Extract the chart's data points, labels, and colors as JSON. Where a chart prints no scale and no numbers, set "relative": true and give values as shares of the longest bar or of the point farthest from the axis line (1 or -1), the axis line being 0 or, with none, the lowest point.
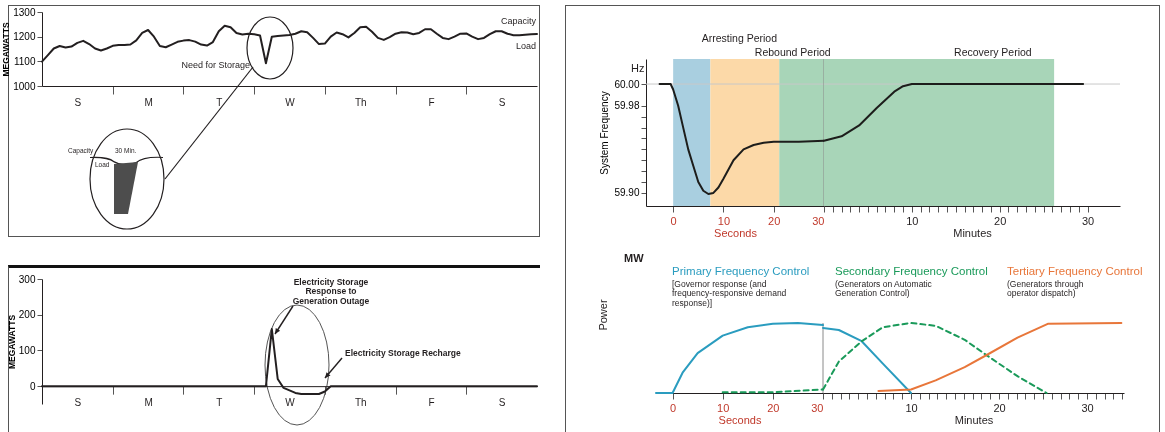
{
  "chart_data": [
    {
      "type": "line",
      "ylabel": "MEGAWATTS",
      "categories": [
        null,
        null,
        null,
        null,
        null,
        null,
        "S",
        null,
        null,
        null,
        null,
        null,
        null,
        null,
        null,
        null,
        null,
        null,
        "M",
        null,
        null,
        null,
        null,
        null,
        null,
        null,
        null,
        null,
        null,
        null,
        "T",
        null,
        null,
        null,
        null,
        null,
        null,
        null,
        null,
        null,
        null,
        null,
        "W",
        null,
        null,
        null,
        null,
        null,
        null,
        null,
        null,
        null,
        null,
        null,
        "Th",
        null,
        null,
        null,
        null,
        null,
        null,
        null,
        null,
        null,
        null,
        null,
        "F",
        null,
        null,
        null,
        null,
        null,
        null,
        null,
        null,
        null,
        null,
        null,
        "S",
        null,
        null,
        null,
        null,
        null,
        null
      ],
      "series": [
        {
          "color": "#231f20",
          "values": [
            1099,
            1125,
            1152,
            1162,
            1156,
            1160,
            1175,
            1183,
            1170,
            1152,
            1144,
            1152,
            1163,
            1166,
            1166,
            1168,
            1185,
            1215,
            1227,
            1200,
            1162,
            1157,
            1168,
            1179,
            1184,
            1186,
            1180,
            1168,
            1164,
            1178,
            1222,
            1244,
            1238,
            1215,
            1209,
            1212,
            1210,
            1205,
            1092,
            1200,
            1203,
            1205,
            1207,
            1212,
            1222,
            1218,
            1195,
            1170,
            1172,
            1200,
            1217,
            1210,
            1197,
            1215,
            1238,
            1240,
            1220,
            1195,
            1187,
            1198,
            1212,
            1218,
            1217,
            1210,
            1215,
            1230,
            1230,
            1212,
            1195,
            1190,
            1200,
            1212,
            1213,
            1200,
            1190,
            1195,
            1210,
            1222,
            1222,
            1212,
            1206,
            1206,
            1208,
            1210,
            1211
          ]
        }
      ],
      "ylim": [
        1000,
        1300
      ],
      "yticks": [
        1000,
        1100,
        1200,
        1300
      ],
      "annotations": [
        "Need for Storage",
        "Capacity",
        "Load",
        "Capacity",
        "30 Min.",
        "Load"
      ]
    },
    {
      "type": "line",
      "ylabel": "MEGAWATTS",
      "categories": [
        null,
        null,
        null,
        null,
        null,
        null,
        "S",
        null,
        null,
        null,
        null,
        null,
        null,
        null,
        null,
        null,
        null,
        null,
        "M",
        null,
        null,
        null,
        null,
        null,
        null,
        null,
        null,
        null,
        null,
        null,
        "T",
        null,
        null,
        null,
        null,
        null,
        null,
        null,
        null,
        null,
        null,
        null,
        "W",
        null,
        null,
        null,
        null,
        null,
        null,
        null,
        null,
        null,
        null,
        null,
        "Th",
        null,
        null,
        null,
        null,
        null,
        null,
        null,
        null,
        null,
        null,
        null,
        "F",
        null,
        null,
        null,
        null,
        null,
        null,
        null,
        null,
        null,
        null,
        null,
        "S",
        null,
        null,
        null,
        null,
        null,
        null
      ],
      "series": [
        {
          "color": "#231f20",
          "values": [
            0,
            0,
            0,
            0,
            0,
            0,
            0,
            0,
            0,
            0,
            0,
            0,
            0,
            0,
            0,
            0,
            0,
            0,
            0,
            0,
            0,
            0,
            0,
            0,
            0,
            0,
            0,
            0,
            0,
            0,
            0,
            0,
            0,
            0,
            0,
            0,
            0,
            0,
            0,
            160,
            20,
            -5,
            -12,
            -19,
            -22,
            -22,
            -22,
            -22,
            -15,
            0,
            0,
            0,
            0,
            0,
            0,
            0,
            0,
            0,
            0,
            0,
            0,
            0,
            0,
            0,
            0,
            0,
            0,
            0,
            0,
            0,
            0,
            0,
            0,
            0,
            0,
            0,
            0,
            0,
            0,
            0,
            0,
            0,
            0,
            0,
            0
          ]
        }
      ],
      "ylim": [
        -50,
        300
      ],
      "yticks": [
        0,
        100,
        200,
        300
      ],
      "annotations": [
        "Electricity Storage Response to Generation Outage",
        "Electricity Storage Recharge"
      ]
    },
    {
      "type": "line",
      "xlabel": "Seconds",
      "ylabel": "System Frequency",
      "x": [
        -2.7,
        -0.5,
        0,
        1,
        2,
        3,
        4,
        5,
        6,
        7,
        8,
        9,
        10,
        12,
        14,
        16,
        18,
        20,
        25,
        30
      ],
      "series": [
        {
          "color": "#1d1d1b",
          "values": [
            60.0,
            60.0,
            59.995,
            59.98,
            59.96,
            59.94,
            59.925,
            59.91,
            59.902,
            59.899,
            59.9,
            59.905,
            59.913,
            59.93,
            59.94,
            59.944,
            59.946,
            59.947,
            59.947,
            59.948
          ]
        }
      ],
      "xlim": [
        -5.4,
        30
      ],
      "xticks": [
        0,
        10,
        20,
        30
      ],
      "ylim": [
        59.888,
        60.023
      ],
      "yticks": [
        {
          "value": 59.9,
          "label": "59.90"
        },
        {
          "value": 59.91,
          "label": null
        },
        {
          "value": 59.92,
          "label": null
        },
        {
          "value": 59.93,
          "label": null
        },
        {
          "value": 59.94,
          "label": null
        },
        {
          "value": 59.95,
          "label": null
        },
        {
          "value": 59.96,
          "label": null
        },
        {
          "value": 59.97,
          "label": null
        },
        {
          "value": 59.98,
          "label": "59.98"
        },
        {
          "value": 60.0,
          "label": "60.00"
        }
      ],
      "bands": [
        {
          "axis": "x",
          "from": 0,
          "to": 7.4,
          "label": "Arresting Period",
          "color": "#a9cfe0"
        },
        {
          "axis": "x",
          "from": 7.4,
          "to": 21.1,
          "label": "Rebound Period",
          "color": "#fcd9a8"
        },
        {
          "axis": "x",
          "from": 21.1,
          "to": 30,
          "color": "#a8d5b8"
        }
      ],
      "ref_lines": [
        {
          "axis": "y",
          "value": 60.0,
          "color": "#c8c8c8"
        },
        {
          "axis": "x",
          "value": 30,
          "color": "#8a8a8a"
        }
      ],
      "annotations": [
        "Hz"
      ]
    },
    {
      "type": "line",
      "xlabel": "Minutes",
      "tick_labels": "x",
      "x": [
        0,
        2,
        4,
        6,
        8,
        9,
        10,
        29.5
      ],
      "series": [
        {
          "color": "#1d1d1b",
          "values": [
            59.948,
            59.952,
            59.962,
            59.978,
            59.993,
            59.998,
            60.0,
            60.0
          ]
        }
      ],
      "xlim": [
        0,
        33.7
      ],
      "xticks": [
        {
          "value": 1,
          "label": null
        },
        {
          "value": 2,
          "label": null
        },
        {
          "value": 3,
          "label": null
        },
        {
          "value": 4,
          "label": null
        },
        {
          "value": 5,
          "label": null
        },
        {
          "value": 6,
          "label": null
        },
        {
          "value": 7,
          "label": null
        },
        {
          "value": 8,
          "label": null
        },
        {
          "value": 9,
          "label": null
        },
        10,
        {
          "value": 11,
          "label": null
        },
        {
          "value": 12,
          "label": null
        },
        {
          "value": 13,
          "label": null
        },
        {
          "value": 14,
          "label": null
        },
        {
          "value": 15,
          "label": null
        },
        {
          "value": 16,
          "label": null
        },
        {
          "value": 17,
          "label": null
        },
        {
          "value": 18,
          "label": null
        },
        {
          "value": 19,
          "label": null
        },
        20,
        {
          "value": 21,
          "label": null
        },
        {
          "value": 22,
          "label": null
        },
        {
          "value": 23,
          "label": null
        },
        {
          "value": 24,
          "label": null
        },
        {
          "value": 25,
          "label": null
        },
        {
          "value": 26,
          "label": null
        },
        {
          "value": 27,
          "label": null
        },
        {
          "value": 28,
          "label": null
        },
        {
          "value": 29,
          "label": null
        },
        30
      ],
      "ylim": [
        59.888,
        60.023
      ],
      "bands": [
        {
          "axis": "x",
          "from": 0,
          "to": 26.2,
          "label": "Recovery Period",
          "color": "#a8d5b8"
        }
      ],
      "ref_lines": [
        {
          "axis": "y",
          "value": 60.0,
          "color": "#c8c8c8"
        }
      ]
    },
    {
      "type": "line",
      "xlabel": "Seconds",
      "ylabel": "Power",
      "relative": true,
      "series": [
        {
          "color": "#2a9cbf",
          "x": [
            -3.3,
            0,
            2,
            5,
            10,
            15,
            20,
            25,
            30
          ],
          "values": [
            0,
            0,
            0.29,
            0.57,
            0.82,
            0.94,
            0.99,
            1.0,
            0.97
          ]
        },
        {
          "color": "#1a9a5a",
          "line_style": "dashed",
          "x": [
            10,
            20,
            30
          ],
          "values": [
            0.01,
            0.01,
            0.05
          ]
        }
      ],
      "xlim": [
        -3.3,
        30
      ],
      "xticks": [
        0,
        10,
        20,
        30
      ],
      "ref_lines": [
        {
          "axis": "x",
          "value": 30,
          "color": "#8a8a8a"
        }
      ],
      "annotations": [
        "MW",
        "[Governor response (and frequency-responsive demand response)]"
      ]
    },
    {
      "type": "line",
      "xlabel": "Minutes",
      "relative": true,
      "legend": "top",
      "series": [
        {
          "name": "Primary Frequency Control",
          "color": "#2a9cbf",
          "x": [
            0,
            1.8,
            4.4,
            6.8,
            10
          ],
          "values": [
            0.93,
            0.9,
            0.74,
            0.42,
            0
          ]
        },
        {
          "name": "Secondary Frequency Control",
          "color": "#1a9a5a",
          "line_style": "dashed",
          "x": [
            0,
            1.8,
            4.4,
            6.8,
            10,
            12.8,
            16.1,
            18.7,
            22.1,
            25.4
          ],
          "values": [
            0.05,
            0.45,
            0.74,
            0.94,
            1.0,
            0.96,
            0.76,
            0.53,
            0.24,
            0
          ]
        },
        {
          "name": "Tertiary Frequency Control",
          "color": "#e8763a",
          "x": [
            6.3,
            10,
            12.8,
            16.1,
            18.7,
            22.1,
            25.6,
            33.9
          ],
          "values": [
            0.03,
            0.05,
            0.18,
            0.37,
            0.55,
            0.79,
            0.99,
            1.0
          ]
        }
      ],
      "xlim": [
        0,
        34.2
      ],
      "xticks": [
        {
          "value": 1,
          "label": null
        },
        {
          "value": 2,
          "label": null
        },
        {
          "value": 3,
          "label": null
        },
        {
          "value": 4,
          "label": null
        },
        {
          "value": 5,
          "label": null
        },
        {
          "value": 6,
          "label": null
        },
        {
          "value": 7,
          "label": null
        },
        {
          "value": 8,
          "label": null
        },
        {
          "value": 9,
          "label": null
        },
        10,
        {
          "value": 11,
          "label": null
        },
        {
          "value": 12,
          "label": null
        },
        {
          "value": 13,
          "label": null
        },
        {
          "value": 14,
          "label": null
        },
        {
          "value": 15,
          "label": null
        },
        {
          "value": 16,
          "label": null
        },
        {
          "value": 17,
          "label": null
        },
        {
          "value": 18,
          "label": null
        },
        {
          "value": 19,
          "label": null
        },
        20,
        {
          "value": 21,
          "label": null
        },
        {
          "value": 22,
          "label": null
        },
        {
          "value": 23,
          "label": null
        },
        {
          "value": 24,
          "label": null
        },
        {
          "value": 25,
          "label": null
        },
        {
          "value": 26,
          "label": null
        },
        {
          "value": 27,
          "label": null
        },
        {
          "value": 28,
          "label": null
        },
        {
          "value": 29,
          "label": null
        },
        30,
        {
          "value": 31,
          "label": null
        },
        {
          "value": 32,
          "label": null
        },
        {
          "value": 33,
          "label": null
        },
        {
          "value": 34,
          "label": null
        }
      ],
      "annotations": [
        "(Generators on Automatic Generation Control)",
        "(Generators through operator dispatch)"
      ]
    }
  ]
}
